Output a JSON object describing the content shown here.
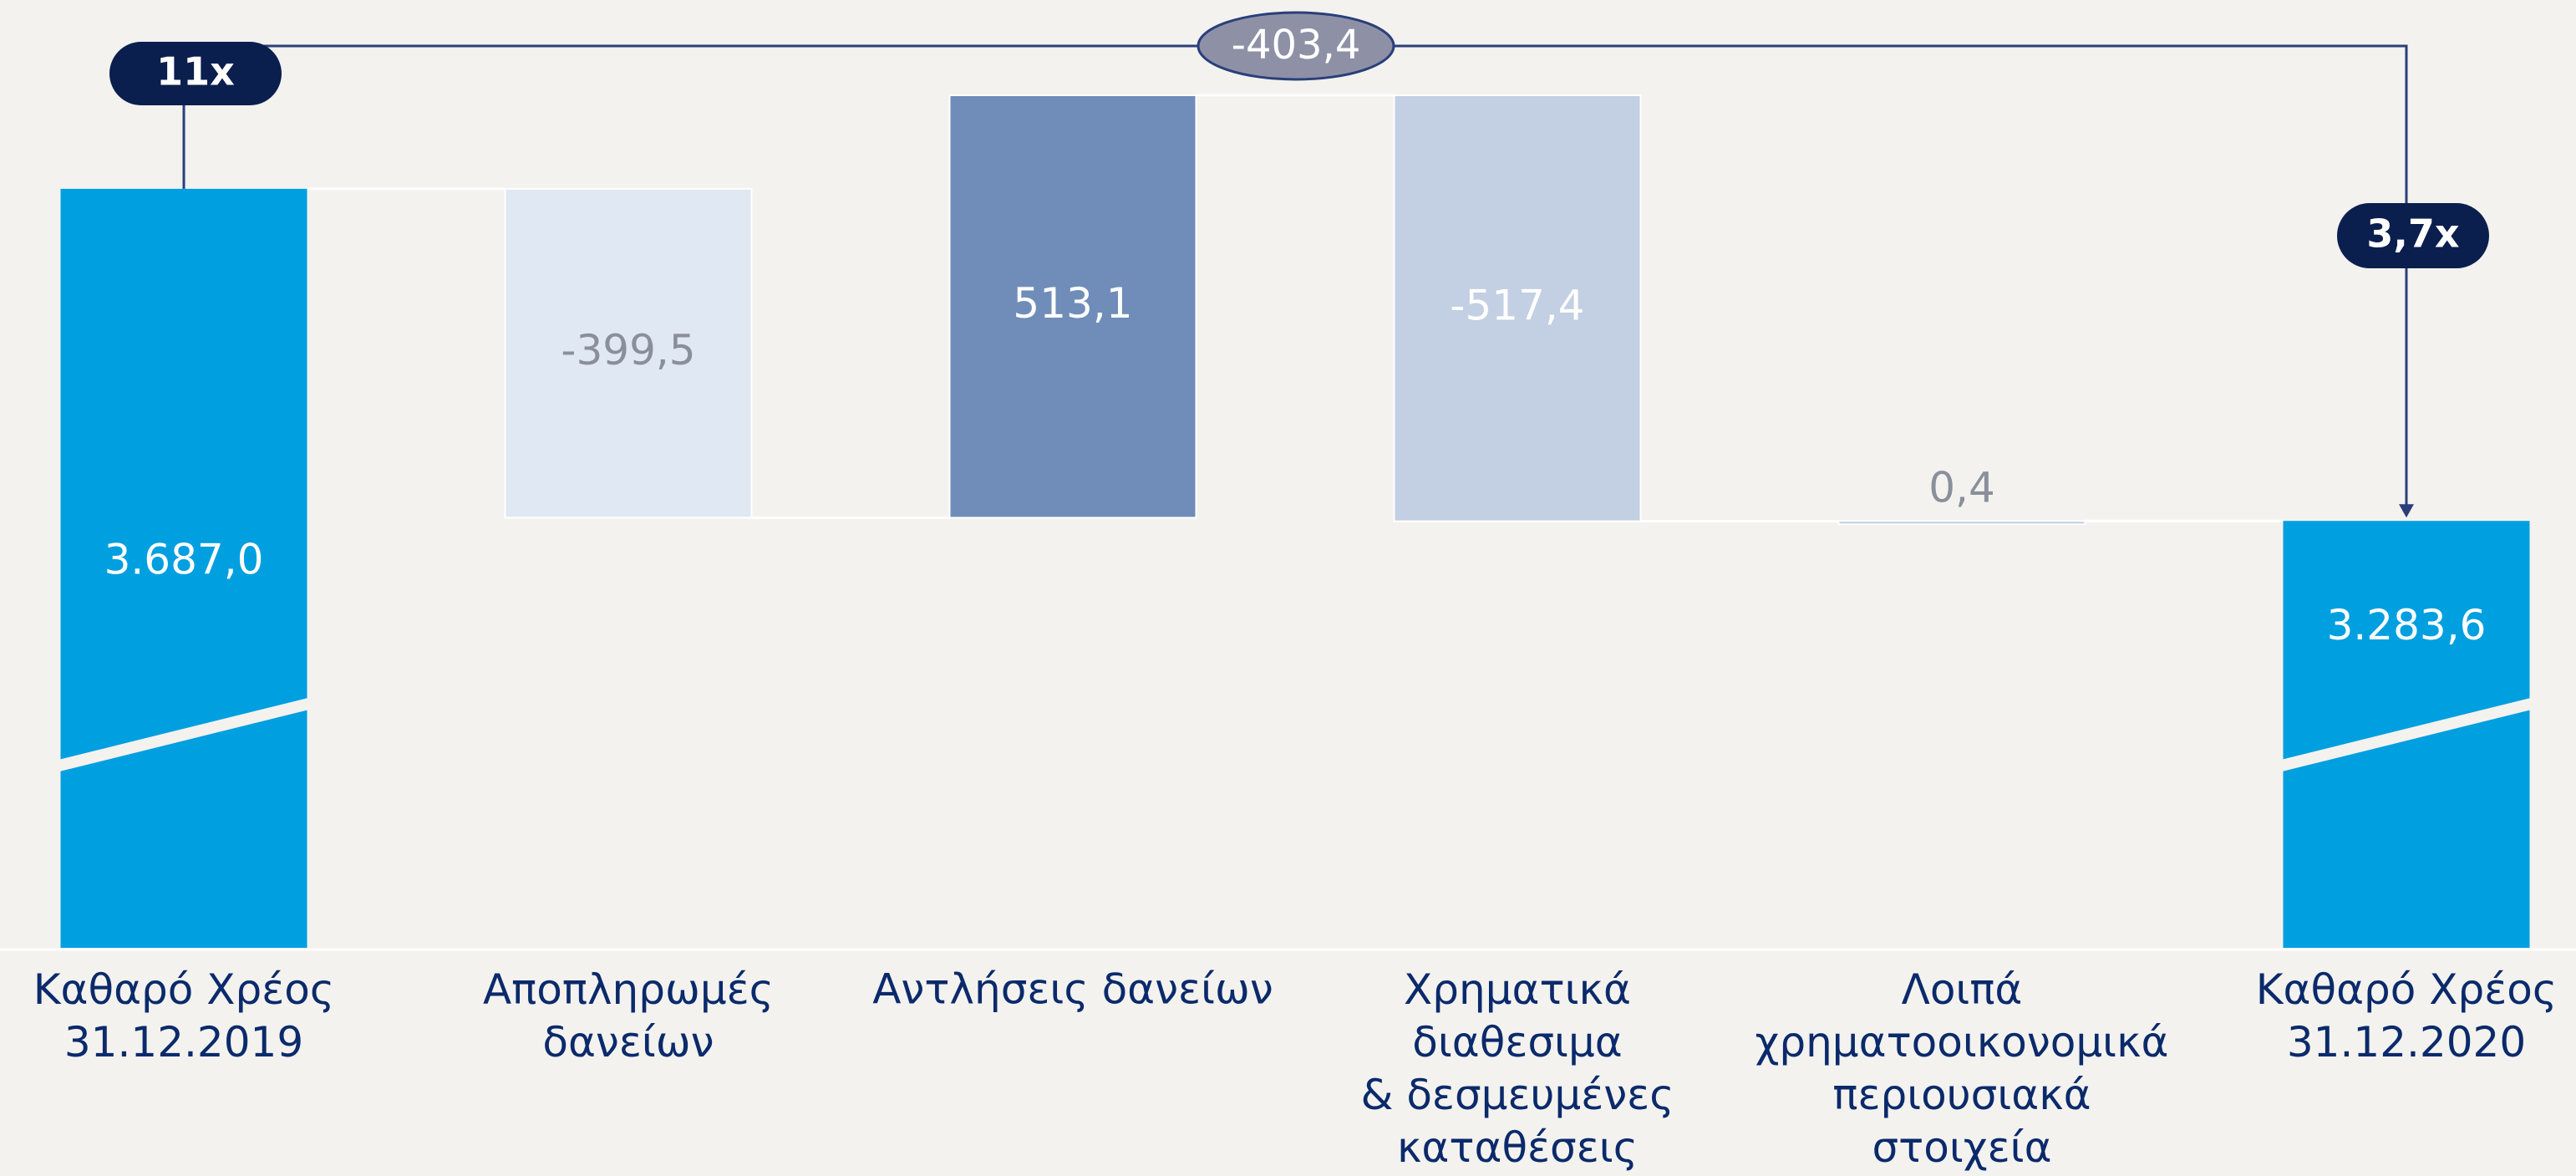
{
  "chart_data": {
    "type": "waterfall",
    "categories": [
      "Καθαρό Χρέος\n31.12.2019",
      "Αποπληρωμές\nδανείων",
      "Αντλήσεις δανείων",
      "Χρηματικά\nδιαθεσιμα\n& δεσμευμένες\nκαταθέσεις",
      "Λοιπά\nχρηματοοικονομικά\nπεριουσιακά\nστοιχεία",
      "Καθαρό Χρέος\n31.12.2020"
    ],
    "values": [
      3687.0,
      -399.5,
      513.1,
      -517.4,
      0.4,
      3283.6
    ],
    "value_labels": [
      "3.687,0",
      "-399,5",
      "513,1",
      "-517,4",
      "0,4",
      "3.283,6"
    ],
    "totals": [
      true,
      false,
      false,
      false,
      false,
      true
    ],
    "colors": [
      "#009fe0",
      "#e0e8f3",
      "#6f8db8",
      "#c3cfe2",
      "#c3cfe2",
      "#009fe0"
    ],
    "label_colors": [
      "#ffffff",
      "#8a8f9c",
      "#ffffff",
      "#ffffff",
      "#8a8f9c",
      "#ffffff"
    ],
    "annotations": {
      "start_multiple": "11x",
      "end_multiple": "3,7x",
      "total_change": "-403,4"
    }
  }
}
